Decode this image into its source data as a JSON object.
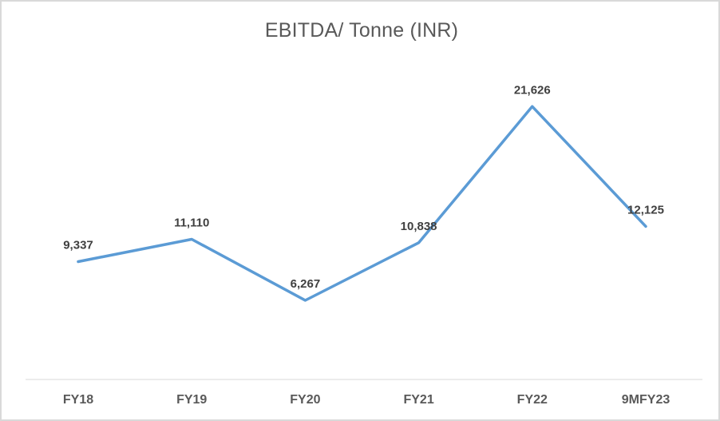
{
  "window": {
    "background": "#ffffff",
    "border_color": "#d9d9d9"
  },
  "chart_data": {
    "type": "line",
    "title": "EBITDA/ Tonne (INR)",
    "categories": [
      "FY18",
      "FY19",
      "FY20",
      "FY21",
      "FY22",
      "9MFY23"
    ],
    "values": [
      9337,
      11110,
      6267,
      10838,
      21626,
      12125
    ],
    "data_labels": [
      "9,337",
      "11,110",
      "6,267",
      "10,838",
      "21,626",
      "12,125"
    ],
    "xlabel": "",
    "ylabel": "",
    "ylim": [
      0,
      25000
    ],
    "grid": false,
    "legend": "none",
    "markers": "none",
    "colors": {
      "line": "#5B9BD5",
      "data_label": "#404040",
      "axis_tick_label": "#595959",
      "axis_line": "#d9d9d9",
      "title": "#595959"
    }
  }
}
